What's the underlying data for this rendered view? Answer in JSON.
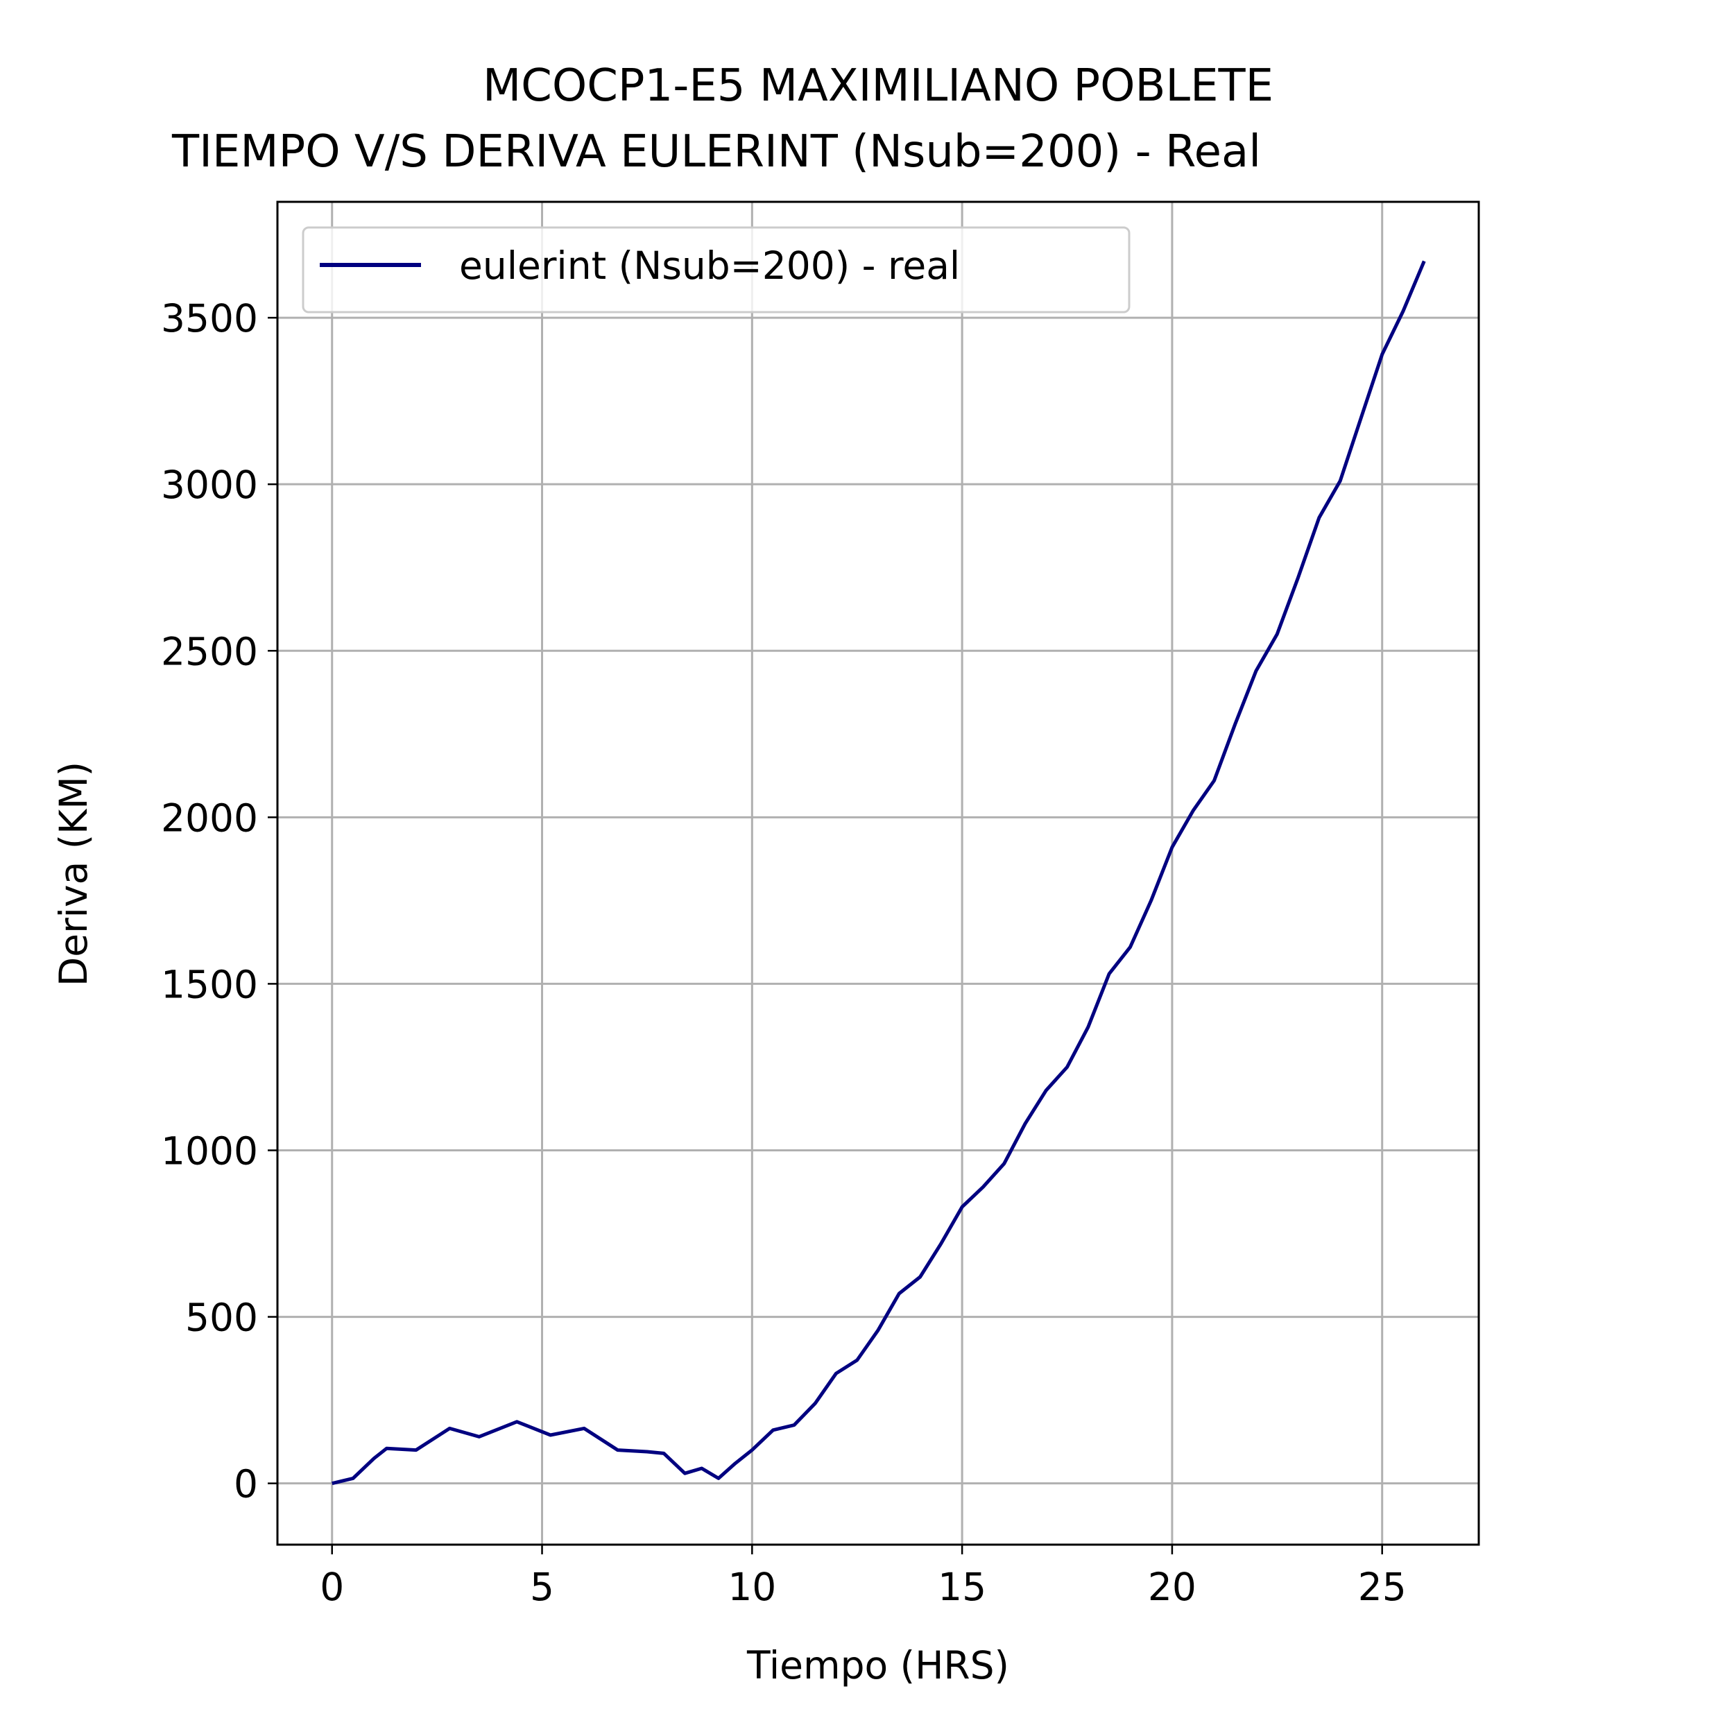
{
  "chart_data": {
    "type": "line",
    "title": [
      "MCOCP1-E5 MAXIMILIANO POBLETE",
      "TIEMPO V/S DERIVA EULERINT (Nsub=200)  - Real"
    ],
    "xlabel": "Tiempo (HRS)",
    "ylabel": "Deriva (KM)",
    "x": [
      0,
      0.5,
      1.0,
      1.3,
      2.0,
      2.8,
      3.5,
      4.4,
      5.2,
      6.0,
      6.8,
      7.5,
      7.9,
      8.4,
      8.8,
      9.2,
      9.6,
      10.0,
      10.5,
      11.0,
      11.5,
      12.0,
      12.5,
      13.0,
      13.5,
      14.0,
      14.5,
      15.0,
      15.5,
      16.0,
      16.5,
      17.0,
      17.5,
      18.0,
      18.5,
      19.0,
      19.5,
      20.0,
      20.5,
      21.0,
      21.5,
      22.0,
      22.5,
      23.0,
      23.5,
      24.0,
      24.5,
      25.0,
      25.5,
      26.0
    ],
    "series": [
      {
        "name": "eulerint (Nsub=200) - real",
        "color": "#000080",
        "values": [
          0,
          15,
          75,
          105,
          100,
          165,
          140,
          185,
          145,
          165,
          100,
          95,
          90,
          30,
          45,
          15,
          60,
          100,
          160,
          175,
          240,
          330,
          370,
          460,
          570,
          620,
          720,
          830,
          890,
          960,
          1080,
          1180,
          1250,
          1370,
          1530,
          1610,
          1750,
          1910,
          2020,
          2110,
          2280,
          2440,
          2550,
          2720,
          2900,
          3010,
          3200,
          3390,
          3520,
          3670
        ]
      }
    ],
    "xlim": [
      -1.3,
      27.3
    ],
    "ylim": [
      -184,
      3848
    ],
    "xticks": [
      0,
      5,
      10,
      15,
      20,
      25
    ],
    "yticks": [
      0,
      500,
      1000,
      1500,
      2000,
      2500,
      3000,
      3500
    ],
    "grid": true,
    "legend": "upper left"
  }
}
